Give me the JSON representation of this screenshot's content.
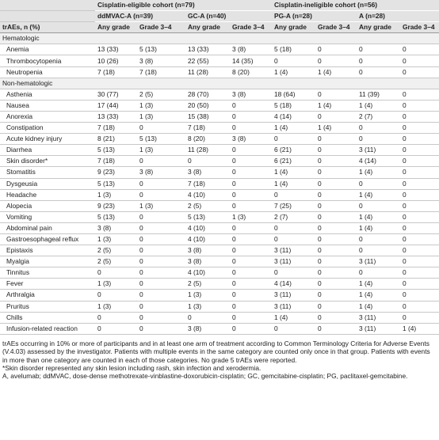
{
  "table": {
    "groups": [
      "Cisplatin-eligible cohort (n=79)",
      "Cisplatin-ineligible cohort (n=56)"
    ],
    "arms": [
      "ddMVAC-A (n=39)",
      "GC-A (n=40)",
      "PG-A (n=28)",
      "A (n=28)"
    ],
    "header": {
      "label": "trAEs, n (%)",
      "columns": [
        "Any grade",
        "Grade 3–4",
        "Any grade",
        "Grade 3–4",
        "Any grade",
        "Grade 3–4",
        "Any grade",
        "Grade 3–4"
      ]
    },
    "sections": [
      {
        "title": "Hematologic",
        "rows": [
          {
            "label": "Anemia",
            "cells": [
              "13 (33)",
              "5 (13)",
              "13 (33)",
              "3 (8)",
              "5 (18)",
              "0",
              "0",
              "0"
            ]
          },
          {
            "label": "Thrombocytopenia",
            "cells": [
              "10 (26)",
              "3 (8)",
              "22 (55)",
              "14 (35)",
              "0",
              "0",
              "0",
              "0"
            ]
          },
          {
            "label": "Neutropenia",
            "cells": [
              "7 (18)",
              "7 (18)",
              "11 (28)",
              "8 (20)",
              "1 (4)",
              "1 (4)",
              "0",
              "0"
            ]
          }
        ]
      },
      {
        "title": "Non-hematologic",
        "rows": [
          {
            "label": "Asthenia",
            "cells": [
              "30 (77)",
              "2 (5)",
              "28 (70)",
              "3 (8)",
              "18 (64)",
              "0",
              "11 (39)",
              "0"
            ]
          },
          {
            "label": "Nausea",
            "cells": [
              "17 (44)",
              "1 (3)",
              "20 (50)",
              "0",
              "5 (18)",
              "1 (4)",
              "1 (4)",
              "0"
            ]
          },
          {
            "label": "Anorexia",
            "cells": [
              "13 (33)",
              "1 (3)",
              "15 (38)",
              "0",
              "4 (14)",
              "0",
              "2 (7)",
              "0"
            ]
          },
          {
            "label": "Constipation",
            "cells": [
              "7 (18)",
              "0",
              "7 (18)",
              "0",
              "1 (4)",
              "1 (4)",
              "0",
              "0"
            ]
          },
          {
            "label": "Acute kidney injury",
            "cells": [
              "8 (21)",
              "5 (13)",
              "8 (20)",
              "3 (8)",
              "0",
              "0",
              "0",
              "0"
            ]
          },
          {
            "label": "Diarrhea",
            "cells": [
              "5 (13)",
              "1 (3)",
              "11 (28)",
              "0",
              "6 (21)",
              "0",
              "3 (11)",
              "0"
            ]
          },
          {
            "label": "Skin disorder*",
            "cells": [
              "7 (18)",
              "0",
              "0",
              "0",
              "6 (21)",
              "0",
              "4 (14)",
              "0"
            ]
          },
          {
            "label": "Stomatitis",
            "cells": [
              "9 (23)",
              "3 (8)",
              "3 (8)",
              "0",
              "1 (4)",
              "0",
              "1 (4)",
              "0"
            ]
          },
          {
            "label": "Dysgeusia",
            "cells": [
              "5 (13)",
              "0",
              "7 (18)",
              "0",
              "1 (4)",
              "0",
              "0",
              "0"
            ]
          },
          {
            "label": "Headache",
            "cells": [
              "1 (3)",
              "0",
              "4 (10)",
              "0",
              "0",
              "0",
              "1 (4)",
              "0"
            ]
          },
          {
            "label": "Alopecia",
            "cells": [
              "9 (23)",
              "1 (3)",
              "2 (5)",
              "0",
              "7 (25)",
              "0",
              "0",
              "0"
            ]
          },
          {
            "label": "Vomiting",
            "cells": [
              "5 (13)",
              "0",
              "5 (13)",
              "1 (3)",
              "2 (7)",
              "0",
              "1 (4)",
              "0"
            ]
          },
          {
            "label": "Abdominal pain",
            "cells": [
              "3 (8)",
              "0",
              "4 (10)",
              "0",
              "0",
              "0",
              "1 (4)",
              "0"
            ]
          },
          {
            "label": "Gastroesophageal reflux",
            "cells": [
              "1 (3)",
              "0",
              "4 (10)",
              "0",
              "0",
              "0",
              "0",
              "0"
            ]
          },
          {
            "label": "Epistaxis",
            "cells": [
              "2 (5)",
              "0",
              "3 (8)",
              "0",
              "3 (11)",
              "0",
              "0",
              "0"
            ]
          },
          {
            "label": "Myalgia",
            "cells": [
              "2 (5)",
              "0",
              "3 (8)",
              "0",
              "3 (11)",
              "0",
              "3 (11)",
              "0"
            ]
          },
          {
            "label": "Tinnitus",
            "cells": [
              "0",
              "0",
              "4 (10)",
              "0",
              "0",
              "0",
              "0",
              "0"
            ]
          },
          {
            "label": "Fever",
            "cells": [
              "1 (3)",
              "0",
              "2 (5)",
              "0",
              "4 (14)",
              "0",
              "1 (4)",
              "0"
            ]
          },
          {
            "label": "Arthralgia",
            "cells": [
              "0",
              "0",
              "1 (3)",
              "0",
              "3 (11)",
              "0",
              "1 (4)",
              "0"
            ]
          },
          {
            "label": "Pruritus",
            "cells": [
              "1 (3)",
              "0",
              "1 (3)",
              "0",
              "3 (11)",
              "0",
              "1 (4)",
              "0"
            ]
          },
          {
            "label": "Chills",
            "cells": [
              "0",
              "0",
              "0",
              "0",
              "1 (4)",
              "0",
              "3 (11)",
              "0"
            ]
          },
          {
            "label": "Infusion-related reaction",
            "cells": [
              "0",
              "0",
              "3 (8)",
              "0",
              "0",
              "0",
              "3 (11)",
              "1 (4)"
            ]
          }
        ]
      }
    ]
  },
  "footnotes": [
    "trAEs occurring in 10% or more of participants and in at least one arm of treatment according to Common Terminology Criteria for Adverse Events (V.4.03) assessed by the investigator. Patients with multiple events in the same category are counted only once in that group. Patients with events in more than one category are counted in each of those categories. No grade 5 trAEs were reported.",
    "*Skin disorder represented any skin lesion including rash, skin infection and xerodermia.",
    "A, avelumab; ddMVAC, dose-dense methotrexate-vinblastine-doxorubicin-cisplatin; GC, gemcitabine-cisplatin; PG, paclitaxel-gemcitabine."
  ]
}
